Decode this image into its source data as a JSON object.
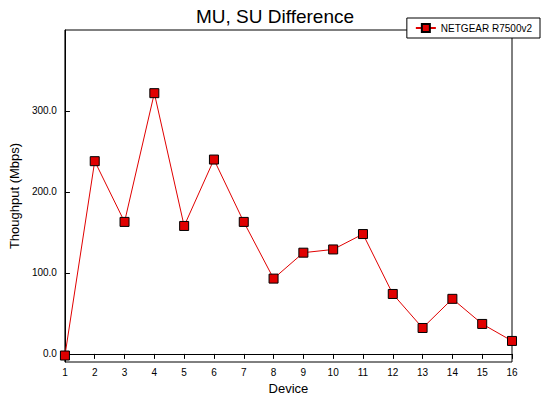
{
  "chart_data": {
    "type": "line",
    "title": "MU, SU Difference",
    "x_label": "Device",
    "y_label": "Thoughput (Mbps)",
    "categories": [
      "1",
      "2",
      "3",
      "4",
      "5",
      "6",
      "7",
      "8",
      "9",
      "10",
      "11",
      "12",
      "13",
      "14",
      "15",
      "16"
    ],
    "series": [
      {
        "name": "NETGEAR R7500v2",
        "color": "#e00000",
        "marker": "square",
        "line_style": "solid",
        "values": [
          -2,
          238,
          163,
          322,
          158,
          240,
          163,
          93,
          125,
          129,
          148,
          74,
          32,
          68,
          37,
          16
        ]
      }
    ],
    "ylim": [
      -10,
      400
    ],
    "yticks": [
      {
        "value": 0,
        "label": "0.0"
      },
      {
        "value": 100,
        "label": "100.0"
      },
      {
        "value": 200,
        "label": "200.0"
      },
      {
        "value": 300,
        "label": "300.0"
      }
    ],
    "grid": false,
    "legend": "top-right"
  }
}
